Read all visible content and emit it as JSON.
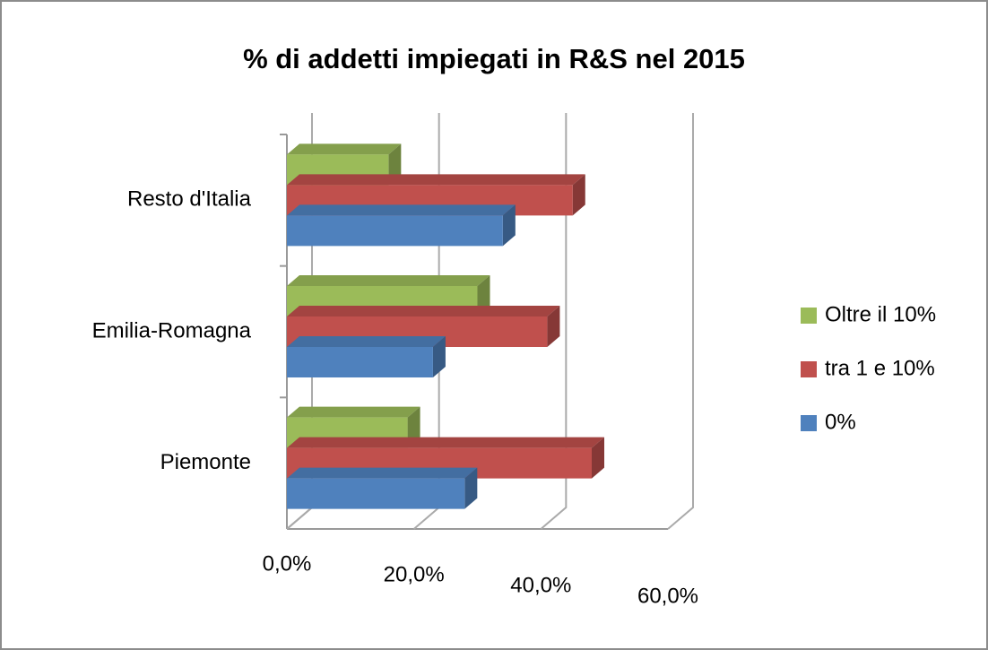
{
  "chart_data": {
    "type": "bar3d_horizontal",
    "title": "% di addetti impiegati in R&S nel 2015",
    "categories": [
      "Piemonte",
      "Emilia-Romagna",
      "Resto d'Italia"
    ],
    "series": [
      {
        "name": "0%",
        "color": "#4f81bd",
        "values": [
          28,
          23,
          34
        ]
      },
      {
        "name": "tra 1 e 10%",
        "color": "#c0504d",
        "values": [
          48,
          41,
          45
        ]
      },
      {
        "name": "Oltre il 10%",
        "color": "#9bbb59",
        "values": [
          19,
          30,
          16
        ]
      }
    ],
    "xlim": [
      0,
      60
    ],
    "xticks": [
      {
        "value": 0,
        "label": "0,0%"
      },
      {
        "value": 20,
        "label": "20,0%"
      },
      {
        "value": 40,
        "label": "40,0%"
      },
      {
        "value": 60,
        "label": "60,0%"
      }
    ],
    "grid": true,
    "legend": "right"
  }
}
